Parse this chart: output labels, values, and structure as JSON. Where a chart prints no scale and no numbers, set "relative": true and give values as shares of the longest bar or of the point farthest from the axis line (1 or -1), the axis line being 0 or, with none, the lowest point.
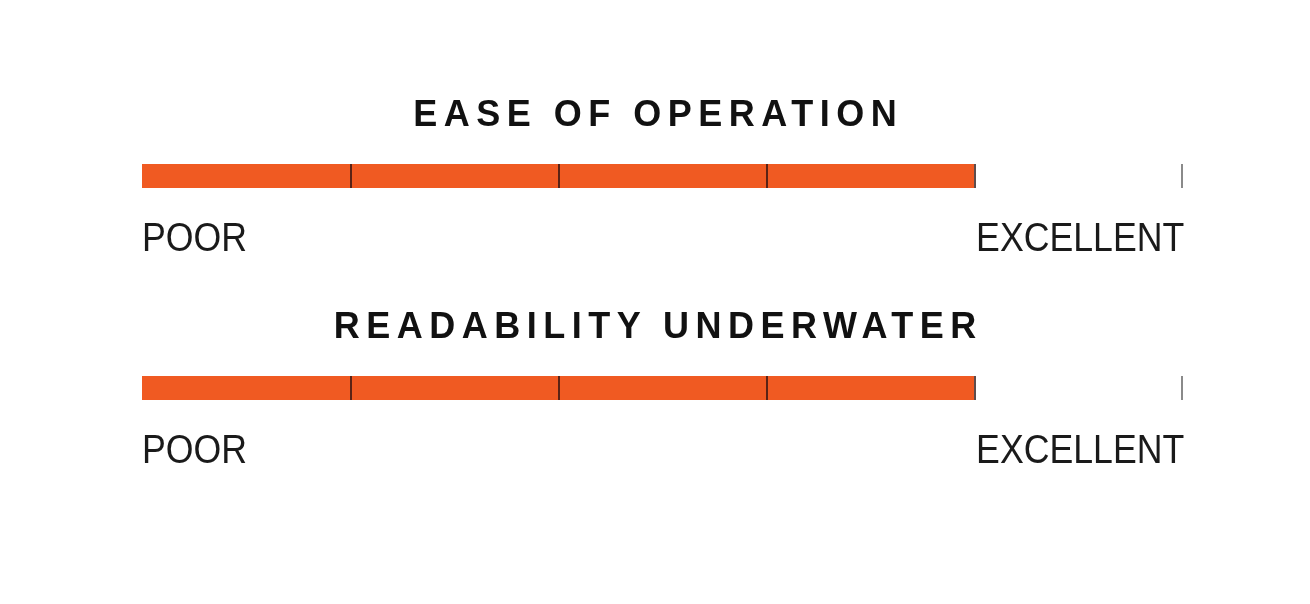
{
  "chart_data": [
    {
      "type": "bar",
      "orientation": "horizontal",
      "relative": true,
      "stacked": true,
      "title": "EASE OF OPERATION",
      "categories": [
        null
      ],
      "series": [
        {
          "color": "#f05a24",
          "values": [
            0.25
          ]
        },
        {
          "color": "#f05a24",
          "values": [
            0.25
          ]
        },
        {
          "color": "#f05a24",
          "values": [
            0.25
          ]
        },
        {
          "color": "#f05a24",
          "values": [
            0.25
          ]
        }
      ],
      "annotations": [
        "POOR",
        "EXCELLENT"
      ]
    },
    {
      "type": "bar",
      "orientation": "horizontal",
      "relative": true,
      "stacked": true,
      "title": "READABILITY UNDERWATER",
      "categories": [
        null
      ],
      "series": [
        {
          "color": "#f05a24",
          "values": [
            0.25
          ]
        },
        {
          "color": "#f05a24",
          "values": [
            0.25
          ]
        },
        {
          "color": "#f05a24",
          "values": [
            0.25
          ]
        },
        {
          "color": "#f05a24",
          "values": [
            0.25
          ]
        }
      ],
      "annotations": [
        "POOR",
        "EXCELLENT"
      ]
    }
  ]
}
